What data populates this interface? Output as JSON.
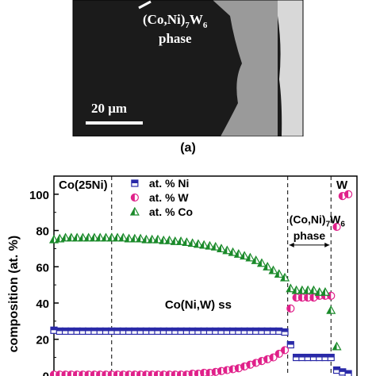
{
  "micrograph": {
    "phase_label": "(Co,Ni)",
    "phase_sub_7": "7",
    "phase_W": "W",
    "phase_sub_6": "6",
    "phase_word": "phase",
    "scale_bar_label": "20 μm",
    "colors": {
      "dark_region": "#1b1b1b",
      "grey_region": "#9a9a9a",
      "light_region": "#d8d8d8",
      "frame": "#000000"
    }
  },
  "panel_label": "(a)",
  "chart_data": {
    "type": "scatter",
    "ylabel": "composition (at. %)",
    "xlabel": "",
    "ylim": [
      0,
      110
    ],
    "yticks": [
      0,
      20,
      40,
      60,
      80,
      100
    ],
    "x_unit": "index",
    "xlim": [
      0,
      105
    ],
    "region_labels": {
      "left": "Co(25Ni)",
      "middle": "Co(Ni,W) ss",
      "phase_top": "(Co,Ni)",
      "phase_sub_7": "7",
      "phase_W": "W",
      "phase_sub_6": "6",
      "phase_word": "phase",
      "right": "W"
    },
    "dividers_x": [
      20,
      81,
      96
    ],
    "phase_arrow_x": [
      81,
      96
    ],
    "series": [
      {
        "name": "at. % Ni",
        "marker": "square-half",
        "color": "#2a2aa8",
        "x": [
          0,
          2,
          4,
          6,
          8,
          10,
          12,
          14,
          16,
          18,
          20,
          22,
          24,
          26,
          28,
          30,
          32,
          34,
          36,
          38,
          40,
          42,
          44,
          46,
          48,
          50,
          52,
          54,
          56,
          58,
          60,
          62,
          64,
          66,
          68,
          70,
          72,
          74,
          76,
          78,
          80,
          82,
          84,
          86,
          88,
          90,
          92,
          94,
          96,
          98,
          100,
          102
        ],
        "y": [
          25,
          24.5,
          24.5,
          24.5,
          24.5,
          24.5,
          24.5,
          24.5,
          24.5,
          24.5,
          24.5,
          24.5,
          24.5,
          24.5,
          24.5,
          24.5,
          24.5,
          24.5,
          24.5,
          24.5,
          24.5,
          24.5,
          24.5,
          24.5,
          24.5,
          24.5,
          24.5,
          24.5,
          24.5,
          24.5,
          24.5,
          24.5,
          24.5,
          24.5,
          24.5,
          24.5,
          24.5,
          24.5,
          24.5,
          24.5,
          24,
          17,
          10,
          10,
          10,
          10,
          10,
          10,
          10,
          3,
          2,
          1
        ]
      },
      {
        "name": "at. % W",
        "marker": "circle-half",
        "color": "#e0218a",
        "x": [
          0,
          2,
          4,
          6,
          8,
          10,
          12,
          14,
          16,
          18,
          20,
          22,
          24,
          26,
          28,
          30,
          32,
          34,
          36,
          38,
          40,
          42,
          44,
          46,
          48,
          50,
          52,
          54,
          56,
          58,
          60,
          62,
          64,
          66,
          68,
          70,
          72,
          74,
          76,
          78,
          80,
          82,
          84,
          86,
          88,
          90,
          92,
          94,
          96,
          98,
          100,
          102
        ],
        "y": [
          0.5,
          0.5,
          0.5,
          0.5,
          0.5,
          0.5,
          0.5,
          0.5,
          0.5,
          0.5,
          0.5,
          0.5,
          0.5,
          0.5,
          0.5,
          0.5,
          0.5,
          0.5,
          0.5,
          0.5,
          0.5,
          0.5,
          0.5,
          0.5,
          1,
          1,
          1.5,
          1.5,
          2,
          2.5,
          3,
          3.5,
          4,
          5,
          6,
          7,
          8,
          9,
          10,
          12,
          14,
          37,
          43,
          43,
          43,
          43,
          44,
          44,
          44,
          82,
          99,
          100
        ]
      },
      {
        "name": "at. % Co",
        "marker": "triangle-half",
        "color": "#1a8a2a",
        "x": [
          0,
          2,
          4,
          6,
          8,
          10,
          12,
          14,
          16,
          18,
          20,
          22,
          24,
          26,
          28,
          30,
          32,
          34,
          36,
          38,
          40,
          42,
          44,
          46,
          48,
          50,
          52,
          54,
          56,
          58,
          60,
          62,
          64,
          66,
          68,
          70,
          72,
          74,
          76,
          78,
          80,
          82,
          84,
          86,
          88,
          90,
          92,
          94,
          96,
          98
        ],
        "y": [
          75,
          75.5,
          76,
          76,
          76,
          76,
          76,
          76,
          76,
          76,
          76,
          76,
          76,
          75.5,
          75.5,
          75.5,
          75,
          75,
          75,
          74.5,
          74.5,
          74,
          74,
          73.5,
          73,
          72.5,
          72,
          71.5,
          71,
          70,
          69,
          68,
          67,
          66,
          65,
          63.5,
          62,
          60,
          58,
          56,
          54,
          48,
          47,
          47,
          47,
          47,
          46,
          46,
          36,
          16
        ]
      }
    ],
    "legend_placement": "top-center"
  }
}
